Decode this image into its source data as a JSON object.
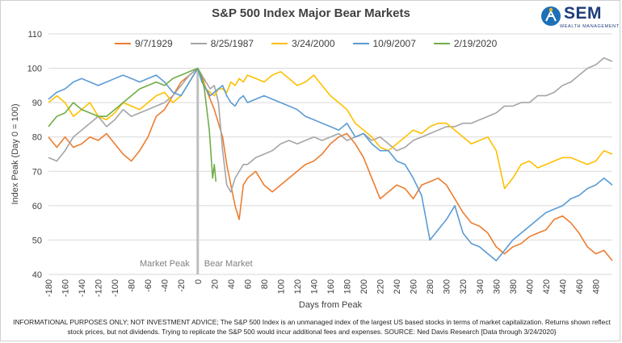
{
  "chart_data": {
    "type": "line",
    "title": "S&P 500 Index Major Bear Markets",
    "xlabel": "Days from Peak",
    "ylabel": "Index Peak (Day 0 = 100)",
    "xlim": [
      -180,
      500
    ],
    "ylim": [
      40,
      110
    ],
    "xticks": [
      -180,
      -160,
      -140,
      -120,
      -100,
      -80,
      -60,
      -40,
      -20,
      0,
      20,
      40,
      60,
      80,
      100,
      120,
      140,
      160,
      180,
      200,
      220,
      240,
      260,
      280,
      300,
      320,
      340,
      360,
      380,
      400,
      420,
      440,
      460,
      480
    ],
    "yticks": [
      40,
      50,
      60,
      70,
      80,
      90,
      100,
      110
    ],
    "grid": true,
    "legend_position": "top",
    "annotations": {
      "vertical_line_x": 0,
      "left_label": "Market Peak",
      "right_label": "Bear Market"
    },
    "series": [
      {
        "name": "9/7/1929",
        "color": "#ED7D31",
        "x": [
          -180,
          -170,
          -160,
          -150,
          -140,
          -130,
          -120,
          -110,
          -100,
          -90,
          -80,
          -70,
          -60,
          -50,
          -40,
          -30,
          -20,
          -10,
          0,
          5,
          10,
          15,
          20,
          25,
          30,
          35,
          40,
          45,
          50,
          55,
          60,
          70,
          80,
          90,
          100,
          110,
          120,
          130,
          140,
          150,
          160,
          170,
          180,
          190,
          200,
          210,
          220,
          230,
          240,
          250,
          260,
          270,
          280,
          290,
          300,
          310,
          320,
          330,
          340,
          350,
          360,
          370,
          380,
          390,
          400,
          410,
          420,
          430,
          440,
          450,
          460,
          470,
          480,
          490,
          500
        ],
        "y": [
          80,
          77,
          80,
          77,
          78,
          80,
          79,
          81,
          78,
          75,
          73,
          76,
          80,
          86,
          88,
          92,
          96,
          98,
          100,
          98,
          94,
          91,
          88,
          84,
          80,
          72,
          66,
          60,
          56,
          66,
          68,
          70,
          66,
          64,
          66,
          68,
          70,
          72,
          73,
          75,
          78,
          80,
          81,
          78,
          74,
          68,
          62,
          64,
          66,
          65,
          62,
          66,
          67,
          68,
          66,
          62,
          58,
          55,
          54,
          52,
          48,
          46,
          48,
          49,
          51,
          52,
          53,
          56,
          57,
          55,
          52,
          48,
          46,
          47,
          44
        ]
      },
      {
        "name": "8/25/1987",
        "color": "#A5A5A5",
        "x": [
          -180,
          -170,
          -160,
          -150,
          -140,
          -130,
          -120,
          -110,
          -100,
          -90,
          -80,
          -70,
          -60,
          -50,
          -40,
          -30,
          -20,
          -10,
          0,
          5,
          10,
          15,
          20,
          25,
          30,
          35,
          40,
          45,
          50,
          55,
          60,
          70,
          80,
          90,
          100,
          110,
          120,
          130,
          140,
          150,
          160,
          170,
          180,
          190,
          200,
          210,
          220,
          230,
          240,
          250,
          260,
          270,
          280,
          290,
          300,
          310,
          320,
          330,
          340,
          350,
          360,
          370,
          380,
          390,
          400,
          410,
          420,
          430,
          440,
          450,
          460,
          470,
          480,
          490,
          500
        ],
        "y": [
          74,
          73,
          76,
          80,
          82,
          84,
          86,
          83,
          85,
          88,
          86,
          87,
          88,
          89,
          90,
          92,
          95,
          98,
          100,
          98,
          96,
          94,
          95,
          90,
          76,
          66,
          64,
          68,
          70,
          72,
          72,
          74,
          75,
          76,
          78,
          79,
          78,
          79,
          80,
          79,
          80,
          81,
          79,
          80,
          81,
          79,
          80,
          78,
          76,
          77,
          79,
          80,
          81,
          82,
          83,
          83,
          84,
          84,
          85,
          86,
          87,
          89,
          89,
          90,
          90,
          92,
          92,
          93,
          95,
          96,
          98,
          100,
          101,
          103,
          102
        ]
      },
      {
        "name": "3/24/2000",
        "color": "#FFC000",
        "x": [
          -180,
          -170,
          -160,
          -150,
          -140,
          -130,
          -120,
          -110,
          -100,
          -90,
          -80,
          -70,
          -60,
          -50,
          -40,
          -30,
          -20,
          -10,
          0,
          5,
          10,
          15,
          20,
          25,
          30,
          35,
          40,
          45,
          50,
          55,
          60,
          70,
          80,
          90,
          100,
          110,
          120,
          130,
          140,
          150,
          160,
          170,
          180,
          190,
          200,
          210,
          220,
          230,
          240,
          250,
          260,
          270,
          280,
          290,
          300,
          310,
          320,
          330,
          340,
          350,
          360,
          370,
          380,
          390,
          400,
          410,
          420,
          430,
          440,
          450,
          460,
          470,
          480,
          490,
          500
        ],
        "y": [
          90,
          92,
          90,
          86,
          88,
          90,
          86,
          85,
          87,
          90,
          89,
          88,
          90,
          92,
          93,
          90,
          92,
          96,
          100,
          97,
          94,
          93,
          92,
          94,
          94,
          93,
          96,
          95,
          97,
          96,
          98,
          97,
          96,
          98,
          99,
          97,
          95,
          96,
          98,
          95,
          92,
          90,
          88,
          84,
          82,
          80,
          77,
          76,
          78,
          80,
          82,
          81,
          83,
          84,
          84,
          82,
          80,
          78,
          79,
          80,
          76,
          65,
          68,
          72,
          73,
          71,
          72,
          73,
          74,
          74,
          73,
          72,
          73,
          76,
          75
        ]
      },
      {
        "name": "10/9/2007",
        "color": "#5B9BD5",
        "x": [
          -180,
          -170,
          -160,
          -150,
          -140,
          -130,
          -120,
          -110,
          -100,
          -90,
          -80,
          -70,
          -60,
          -50,
          -40,
          -30,
          -20,
          -10,
          0,
          5,
          10,
          15,
          20,
          25,
          30,
          35,
          40,
          45,
          50,
          55,
          60,
          70,
          80,
          90,
          100,
          110,
          120,
          130,
          140,
          150,
          160,
          170,
          180,
          190,
          200,
          210,
          220,
          230,
          240,
          250,
          260,
          270,
          280,
          290,
          300,
          310,
          320,
          330,
          340,
          350,
          360,
          370,
          380,
          390,
          400,
          410,
          420,
          430,
          440,
          450,
          460,
          470,
          480,
          490,
          500
        ],
        "y": [
          91,
          93,
          94,
          96,
          97,
          96,
          95,
          96,
          97,
          98,
          97,
          96,
          97,
          98,
          96,
          93,
          92,
          96,
          100,
          96,
          94,
          92,
          93,
          94,
          95,
          92,
          90,
          89,
          91,
          92,
          90,
          91,
          92,
          91,
          90,
          89,
          88,
          86,
          85,
          84,
          83,
          82,
          84,
          80,
          81,
          78,
          76,
          76,
          73,
          72,
          68,
          63,
          50,
          53,
          56,
          60,
          52,
          49,
          48,
          46,
          44,
          47,
          50,
          52,
          54,
          56,
          58,
          59,
          60,
          62,
          63,
          65,
          66,
          68,
          66
        ]
      },
      {
        "name": "2/19/2020",
        "color": "#70AD47",
        "x": [
          -180,
          -170,
          -160,
          -150,
          -140,
          -130,
          -120,
          -110,
          -100,
          -90,
          -80,
          -70,
          -60,
          -50,
          -40,
          -30,
          -20,
          -10,
          0,
          4,
          8,
          10,
          12,
          14,
          16,
          18,
          20,
          22
        ],
        "y": [
          83,
          86,
          87,
          90,
          88,
          87,
          86,
          86,
          88,
          90,
          92,
          94,
          95,
          96,
          95,
          97,
          98,
          99,
          100,
          98,
          94,
          90,
          86,
          82,
          75,
          68,
          72,
          67
        ]
      }
    ]
  },
  "logo": {
    "name": "SEM",
    "subtitle": "WEALTH MANAGEMENT"
  },
  "disclaimer": "INFORMATIONAL PURPOSES ONLY; NOT INVESTMENT ADVICE; The S&P 500 Index is an unmanaged index of the largest US based stocks in terms of market capitalization. Returns shown reflect stock prices, but not dividends. Trying to replicate the S&P 500 would incur additional fees and expenses. SOURCE: Ned Davis Research [Data through 3/24/2020}"
}
